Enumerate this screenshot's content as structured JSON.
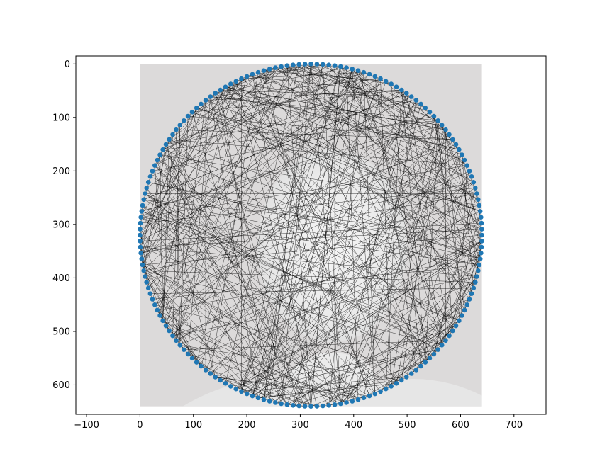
{
  "chart_data": {
    "type": "scatter",
    "title": "",
    "xlabel": "",
    "ylabel": "",
    "xlim": [
      -120,
      760
    ],
    "ylim": [
      655,
      -15
    ],
    "y_inverted": true,
    "x_ticks": [
      -100,
      0,
      100,
      200,
      300,
      400,
      500,
      600,
      700
    ],
    "y_ticks": [
      0,
      100,
      200,
      300,
      400,
      500,
      600
    ],
    "image_extent": [
      0,
      640,
      640,
      0
    ],
    "background_image": "grayscale-face-portrait",
    "circle": {
      "center": [
        320,
        320
      ],
      "radius": 320,
      "n_points": 180
    },
    "points_color": "#1f77b4",
    "edges_color": "#000000",
    "n_edges": 450,
    "grid": false,
    "legend": "none"
  }
}
